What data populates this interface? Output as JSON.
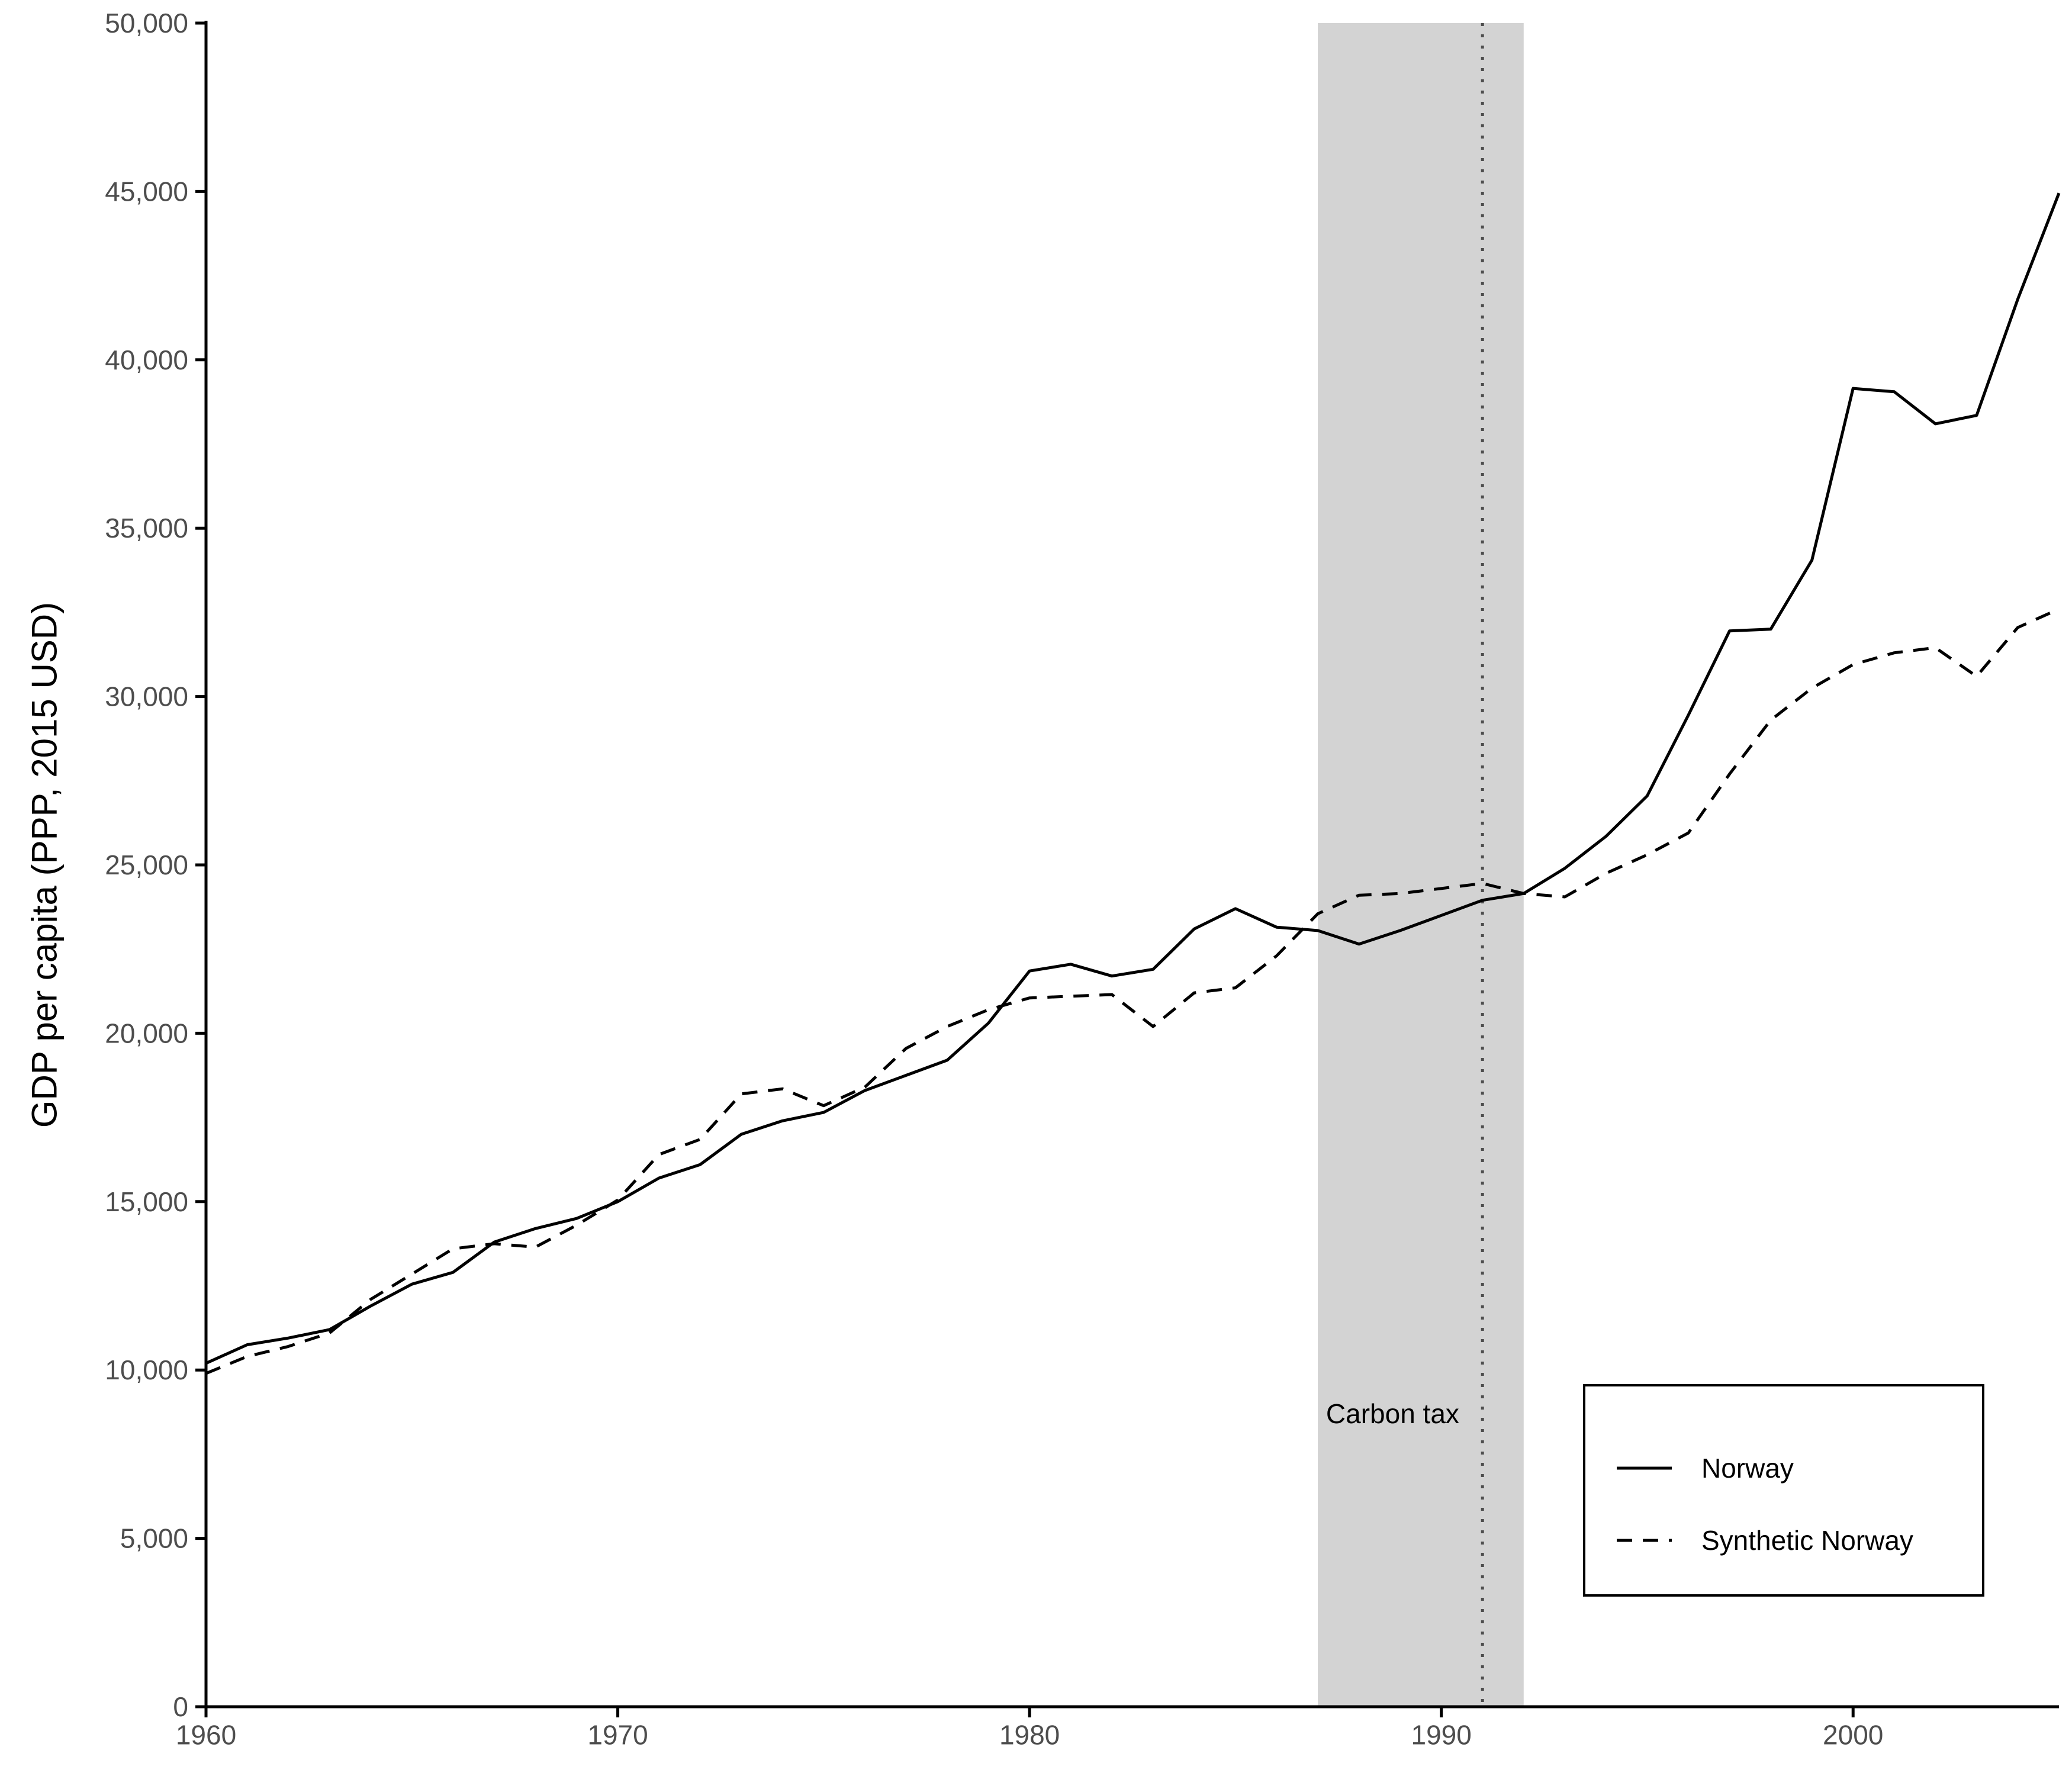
{
  "chart_data": {
    "type": "line",
    "title": "",
    "xlabel": "",
    "ylabel": "GDP per capita (PPP, 2015 USD)",
    "xlim": [
      1960,
      2005
    ],
    "ylim": [
      0,
      50000
    ],
    "x_ticks": [
      1960,
      1970,
      1980,
      1990,
      2000
    ],
    "x_tick_labels": [
      "1960",
      "1970",
      "1980",
      "1990",
      "2000"
    ],
    "y_ticks": [
      0,
      5000,
      10000,
      15000,
      20000,
      25000,
      30000,
      35000,
      40000,
      45000,
      50000
    ],
    "y_tick_labels": [
      "0",
      "5,000",
      "10,000",
      "15,000",
      "20,000",
      "25,000",
      "30,000",
      "35,000",
      "40,000",
      "45,000",
      "50,000"
    ],
    "grid": false,
    "shaded_region": {
      "x_start": 1987,
      "x_end": 1992,
      "color": "#d3d3d3"
    },
    "vertical_line": {
      "x": 1991,
      "style": "dotted",
      "color": "#4d4d4d"
    },
    "annotations": [
      {
        "text": "Carbon tax",
        "x": 1987.2,
        "y": 8700
      }
    ],
    "legend": {
      "placement": "bottom-right",
      "entries": [
        {
          "name": "Norway",
          "linestyle": "solid"
        },
        {
          "name": "Synthetic Norway",
          "linestyle": "dashed"
        }
      ]
    },
    "x": [
      1960,
      1961,
      1962,
      1963,
      1964,
      1965,
      1966,
      1967,
      1968,
      1969,
      1970,
      1971,
      1972,
      1973,
      1974,
      1975,
      1976,
      1977,
      1978,
      1979,
      1980,
      1981,
      1982,
      1983,
      1984,
      1985,
      1986,
      1987,
      1988,
      1989,
      1990,
      1991,
      1992,
      1993,
      1994,
      1995,
      1996,
      1997,
      1998,
      1999,
      2000,
      2001,
      2002,
      2003,
      2004,
      2005
    ],
    "series": [
      {
        "name": "Norway",
        "color": "#000000",
        "linestyle": "solid",
        "values": [
          10200,
          10750,
          10950,
          11200,
          11900,
          12550,
          12900,
          13800,
          14200,
          14500,
          15000,
          15700,
          16100,
          17000,
          17400,
          17650,
          18300,
          18750,
          19200,
          20300,
          21850,
          22050,
          21700,
          21900,
          23100,
          23700,
          23150,
          23050,
          22650,
          23050,
          23500,
          23950,
          24150,
          24900,
          25850,
          27050,
          29450,
          31950,
          32000,
          34050,
          39150,
          39050,
          38100,
          38350,
          41800,
          44950
        ]
      },
      {
        "name": "Synthetic Norway",
        "color": "#000000",
        "linestyle": "dashed",
        "values": [
          9900,
          10400,
          10700,
          11100,
          12100,
          12850,
          13600,
          13750,
          13650,
          14300,
          15050,
          16400,
          16850,
          18200,
          18350,
          17850,
          18400,
          19550,
          20200,
          20700,
          21050,
          21100,
          21150,
          20200,
          21200,
          21350,
          22300,
          23550,
          24100,
          24150,
          24300,
          24450,
          24150,
          24050,
          24750,
          25300,
          25950,
          27700,
          29300,
          30250,
          30950,
          31300,
          31450,
          30600,
          32050,
          32600
        ]
      }
    ]
  }
}
